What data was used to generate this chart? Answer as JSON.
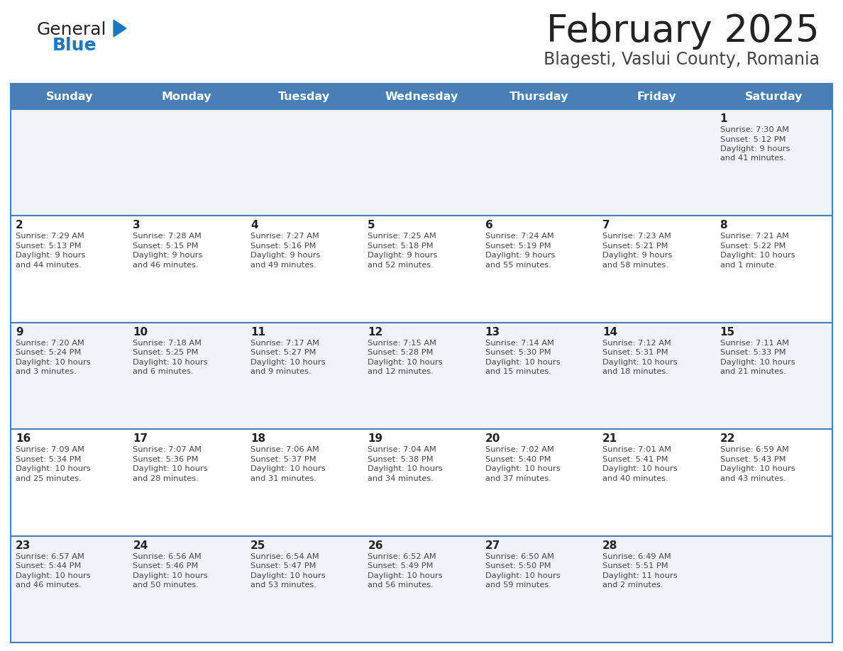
{
  "title": "February 2025",
  "subtitle": "Blagesti, Vaslui County, Romania",
  "header_bg": "#4a7fb5",
  "header_text": "#FFFFFF",
  "row_bg_light": "#f0f4f8",
  "row_bg_white": "#FFFFFF",
  "separator_color": "#4a7fb5",
  "day_headers": [
    "Sunday",
    "Monday",
    "Tuesday",
    "Wednesday",
    "Thursday",
    "Friday",
    "Saturday"
  ],
  "calendar": [
    [
      {
        "day": "",
        "sunrise": "",
        "sunset": "",
        "daylight_h": "",
        "daylight_m": ""
      },
      {
        "day": "",
        "sunrise": "",
        "sunset": "",
        "daylight_h": "",
        "daylight_m": ""
      },
      {
        "day": "",
        "sunrise": "",
        "sunset": "",
        "daylight_h": "",
        "daylight_m": ""
      },
      {
        "day": "",
        "sunrise": "",
        "sunset": "",
        "daylight_h": "",
        "daylight_m": ""
      },
      {
        "day": "",
        "sunrise": "",
        "sunset": "",
        "daylight_h": "",
        "daylight_m": ""
      },
      {
        "day": "",
        "sunrise": "",
        "sunset": "",
        "daylight_h": "",
        "daylight_m": ""
      },
      {
        "day": "1",
        "sunrise": "7:30 AM",
        "sunset": "5:12 PM",
        "daylight_h": "9 hours",
        "daylight_m": "and 41 minutes."
      }
    ],
    [
      {
        "day": "2",
        "sunrise": "7:29 AM",
        "sunset": "5:13 PM",
        "daylight_h": "9 hours",
        "daylight_m": "and 44 minutes."
      },
      {
        "day": "3",
        "sunrise": "7:28 AM",
        "sunset": "5:15 PM",
        "daylight_h": "9 hours",
        "daylight_m": "and 46 minutes."
      },
      {
        "day": "4",
        "sunrise": "7:27 AM",
        "sunset": "5:16 PM",
        "daylight_h": "9 hours",
        "daylight_m": "and 49 minutes."
      },
      {
        "day": "5",
        "sunrise": "7:25 AM",
        "sunset": "5:18 PM",
        "daylight_h": "9 hours",
        "daylight_m": "and 52 minutes."
      },
      {
        "day": "6",
        "sunrise": "7:24 AM",
        "sunset": "5:19 PM",
        "daylight_h": "9 hours",
        "daylight_m": "and 55 minutes."
      },
      {
        "day": "7",
        "sunrise": "7:23 AM",
        "sunset": "5:21 PM",
        "daylight_h": "9 hours",
        "daylight_m": "and 58 minutes."
      },
      {
        "day": "8",
        "sunrise": "7:21 AM",
        "sunset": "5:22 PM",
        "daylight_h": "10 hours",
        "daylight_m": "and 1 minute."
      }
    ],
    [
      {
        "day": "9",
        "sunrise": "7:20 AM",
        "sunset": "5:24 PM",
        "daylight_h": "10 hours",
        "daylight_m": "and 3 minutes."
      },
      {
        "day": "10",
        "sunrise": "7:18 AM",
        "sunset": "5:25 PM",
        "daylight_h": "10 hours",
        "daylight_m": "and 6 minutes."
      },
      {
        "day": "11",
        "sunrise": "7:17 AM",
        "sunset": "5:27 PM",
        "daylight_h": "10 hours",
        "daylight_m": "and 9 minutes."
      },
      {
        "day": "12",
        "sunrise": "7:15 AM",
        "sunset": "5:28 PM",
        "daylight_h": "10 hours",
        "daylight_m": "and 12 minutes."
      },
      {
        "day": "13",
        "sunrise": "7:14 AM",
        "sunset": "5:30 PM",
        "daylight_h": "10 hours",
        "daylight_m": "and 15 minutes."
      },
      {
        "day": "14",
        "sunrise": "7:12 AM",
        "sunset": "5:31 PM",
        "daylight_h": "10 hours",
        "daylight_m": "and 18 minutes."
      },
      {
        "day": "15",
        "sunrise": "7:11 AM",
        "sunset": "5:33 PM",
        "daylight_h": "10 hours",
        "daylight_m": "and 21 minutes."
      }
    ],
    [
      {
        "day": "16",
        "sunrise": "7:09 AM",
        "sunset": "5:34 PM",
        "daylight_h": "10 hours",
        "daylight_m": "and 25 minutes."
      },
      {
        "day": "17",
        "sunrise": "7:07 AM",
        "sunset": "5:36 PM",
        "daylight_h": "10 hours",
        "daylight_m": "and 28 minutes."
      },
      {
        "day": "18",
        "sunrise": "7:06 AM",
        "sunset": "5:37 PM",
        "daylight_h": "10 hours",
        "daylight_m": "and 31 minutes."
      },
      {
        "day": "19",
        "sunrise": "7:04 AM",
        "sunset": "5:38 PM",
        "daylight_h": "10 hours",
        "daylight_m": "and 34 minutes."
      },
      {
        "day": "20",
        "sunrise": "7:02 AM",
        "sunset": "5:40 PM",
        "daylight_h": "10 hours",
        "daylight_m": "and 37 minutes."
      },
      {
        "day": "21",
        "sunrise": "7:01 AM",
        "sunset": "5:41 PM",
        "daylight_h": "10 hours",
        "daylight_m": "and 40 minutes."
      },
      {
        "day": "22",
        "sunrise": "6:59 AM",
        "sunset": "5:43 PM",
        "daylight_h": "10 hours",
        "daylight_m": "and 43 minutes."
      }
    ],
    [
      {
        "day": "23",
        "sunrise": "6:57 AM",
        "sunset": "5:44 PM",
        "daylight_h": "10 hours",
        "daylight_m": "and 46 minutes."
      },
      {
        "day": "24",
        "sunrise": "6:56 AM",
        "sunset": "5:46 PM",
        "daylight_h": "10 hours",
        "daylight_m": "and 50 minutes."
      },
      {
        "day": "25",
        "sunrise": "6:54 AM",
        "sunset": "5:47 PM",
        "daylight_h": "10 hours",
        "daylight_m": "and 53 minutes."
      },
      {
        "day": "26",
        "sunrise": "6:52 AM",
        "sunset": "5:49 PM",
        "daylight_h": "10 hours",
        "daylight_m": "and 56 minutes."
      },
      {
        "day": "27",
        "sunrise": "6:50 AM",
        "sunset": "5:50 PM",
        "daylight_h": "10 hours",
        "daylight_m": "and 59 minutes."
      },
      {
        "day": "28",
        "sunrise": "6:49 AM",
        "sunset": "5:51 PM",
        "daylight_h": "11 hours",
        "daylight_m": "and 2 minutes."
      },
      {
        "day": "",
        "sunrise": "",
        "sunset": "",
        "daylight_h": "",
        "daylight_m": ""
      }
    ]
  ],
  "logo_color_general": "#222222",
  "logo_color_blue": "#1a78c2",
  "logo_triangle_color": "#1a78c2",
  "title_color": "#222222",
  "subtitle_color": "#444444",
  "cell_text_color": "#444444",
  "day_num_color": "#222222",
  "fig_width": 11.88,
  "fig_height": 9.18,
  "dpi": 100
}
